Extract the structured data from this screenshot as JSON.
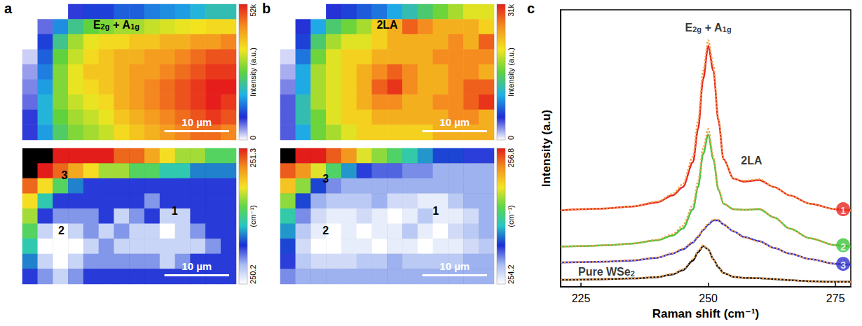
{
  "chart_data": [
    {
      "panel": "a",
      "type": "heatmap",
      "xlim": [
        0,
        33
      ],
      "ylim": [
        0,
        21
      ],
      "tick_labels": false,
      "cells": [
        [
          0,
          0,
          0,
          8000,
          10000,
          10000,
          12000,
          12000,
          14000,
          15000,
          16000,
          18000,
          20000,
          20000
        ],
        [
          0,
          6000,
          15000,
          22000,
          26000,
          28000,
          30000,
          30000,
          32000,
          33000,
          34000,
          35000,
          36000,
          36000
        ],
        [
          0,
          10000,
          22000,
          30000,
          34000,
          36000,
          36000,
          38000,
          38000,
          40000,
          40000,
          42000,
          42000,
          44000
        ],
        [
          2000,
          12000,
          26000,
          32000,
          36000,
          38000,
          40000,
          40000,
          42000,
          42000,
          44000,
          46000,
          48000,
          48000
        ],
        [
          4000,
          14000,
          28000,
          34000,
          38000,
          38000,
          40000,
          42000,
          42000,
          44000,
          46000,
          48000,
          50000,
          50000
        ],
        [
          5000,
          16000,
          28000,
          34000,
          36000,
          38000,
          40000,
          42000,
          44000,
          46000,
          48000,
          50000,
          52000,
          52000
        ],
        [
          6000,
          18000,
          28000,
          32000,
          34000,
          36000,
          40000,
          42000,
          44000,
          46000,
          48000,
          50000,
          52000,
          50000
        ],
        [
          8000,
          18000,
          26000,
          30000,
          32000,
          34000,
          38000,
          40000,
          42000,
          44000,
          46000,
          48000,
          50000,
          48000
        ],
        [
          8000,
          16000,
          24000,
          28000,
          30000,
          32000,
          36000,
          38000,
          40000,
          42000,
          44000,
          46000,
          46000,
          44000
        ]
      ],
      "colorbar": {
        "label": "Intensity (a.u.)",
        "range": [
          0,
          52000
        ],
        "ticks": [
          0,
          {
            "value": 52000,
            "label": "52k"
          }
        ],
        "colors": [
          "#ffffff",
          "#1e2bd5",
          "#1fb2e6",
          "#5fd23e",
          "#f3e61f",
          "#f5901f",
          "#e61e1b"
        ]
      },
      "scale_bar": {
        "label": "10 µm",
        "length": 10
      },
      "annotations": [
        {
          "text": "E2g + A1g",
          "x": 14.5,
          "y": 3
        }
      ]
    },
    {
      "type": "heatmap",
      "xlim": [
        0,
        33
      ],
      "ylim": [
        0,
        21
      ],
      "tick_labels": false,
      "cells": [
        [
          null,
          null,
          251.3,
          251.3,
          251.3,
          251.3,
          251.2,
          251.2,
          251.1,
          251.0,
          250.9,
          250.9,
          250.8,
          250.8
        ],
        [
          null,
          251.3,
          251.2,
          251.1,
          251.0,
          250.9,
          250.9,
          250.8,
          250.8,
          250.7,
          250.7,
          250.6,
          250.6,
          250.6
        ],
        [
          251.2,
          251.0,
          250.8,
          250.6,
          250.5,
          250.5,
          250.5,
          250.5,
          250.5,
          250.5,
          250.5,
          250.5,
          250.5,
          250.5
        ],
        [
          251.0,
          250.7,
          250.5,
          250.5,
          250.5,
          250.5,
          250.5,
          250.5,
          250.4,
          250.5,
          250.5,
          250.5,
          250.5,
          250.5
        ],
        [
          250.9,
          250.5,
          250.4,
          250.4,
          250.4,
          250.5,
          250.3,
          250.4,
          250.5,
          250.3,
          250.3,
          250.5,
          250.5,
          250.5
        ],
        [
          250.8,
          250.3,
          250.2,
          250.3,
          250.4,
          250.3,
          250.4,
          250.3,
          250.3,
          250.2,
          250.3,
          250.4,
          250.5,
          250.5
        ],
        [
          250.7,
          250.2,
          250.2,
          250.2,
          250.3,
          250.4,
          250.3,
          250.3,
          250.3,
          250.3,
          250.3,
          250.3,
          250.4,
          250.5
        ],
        [
          250.6,
          250.3,
          250.2,
          250.3,
          250.4,
          250.4,
          250.4,
          250.4,
          250.4,
          250.3,
          250.4,
          250.5,
          250.5,
          250.5
        ],
        [
          250.5,
          250.4,
          250.3,
          250.4,
          250.5,
          250.5,
          250.5,
          250.5,
          250.5,
          250.5,
          250.5,
          250.5,
          250.5,
          250.5
        ]
      ],
      "colorbar": {
        "label": "(cm⁻¹)",
        "range": [
          250.2,
          251.3
        ],
        "ticks": [
          250.2,
          251.3
        ],
        "colors": [
          "#ffffff",
          "#a9bdf2",
          "#1b2ed6",
          "#26c6c6",
          "#5ed64a",
          "#f5e424",
          "#f3921e",
          "#e31d1a"
        ]
      },
      "scale_bar": {
        "label": "10 µm",
        "length": 10
      },
      "annotations": [
        {
          "text": "3",
          "x": 6.5,
          "y": 4
        },
        {
          "text": "1",
          "x": 23.5,
          "y": 9.5
        },
        {
          "text": "2",
          "x": 6,
          "y": 12.5
        }
      ]
    },
    {
      "panel": "b",
      "type": "heatmap",
      "xlim": [
        0,
        33
      ],
      "ylim": [
        0,
        21
      ],
      "tick_labels": false,
      "cells": [
        [
          0,
          0,
          0,
          5000,
          6000,
          7000,
          8000,
          10000,
          12000,
          14000,
          16000,
          18000,
          20000,
          20000
        ],
        [
          0,
          5000,
          10000,
          14000,
          16000,
          18000,
          22000,
          24000,
          28000,
          26000,
          24000,
          24000,
          24000,
          22000
        ],
        [
          0,
          6000,
          14000,
          18000,
          20000,
          20000,
          22000,
          24000,
          24000,
          24000,
          24000,
          26000,
          24000,
          28000
        ],
        [
          1000,
          8000,
          16000,
          20000,
          22000,
          22000,
          24000,
          24000,
          24000,
          24000,
          26000,
          26000,
          26000,
          26000
        ],
        [
          2000,
          10000,
          18000,
          20000,
          22000,
          24000,
          26000,
          28000,
          26000,
          24000,
          24000,
          26000,
          26000,
          24000
        ],
        [
          3000,
          10000,
          18000,
          20000,
          22000,
          24000,
          28000,
          30000,
          26000,
          24000,
          24000,
          26000,
          28000,
          28000
        ],
        [
          4000,
          12000,
          18000,
          20000,
          22000,
          24000,
          26000,
          26000,
          24000,
          24000,
          26000,
          26000,
          28000,
          30000
        ],
        [
          4000,
          12000,
          16000,
          20000,
          22000,
          22000,
          24000,
          24000,
          24000,
          24000,
          24000,
          26000,
          26000,
          24000
        ],
        [
          4000,
          10000,
          16000,
          18000,
          20000,
          22000,
          22000,
          22000,
          22000,
          22000,
          24000,
          24000,
          24000,
          24000
        ]
      ],
      "colorbar": {
        "label": "Intensity (a.u.)",
        "range": [
          0,
          31000
        ],
        "ticks": [
          0,
          {
            "value": 31000,
            "label": "31k"
          }
        ],
        "colors": [
          "#ffffff",
          "#1e2bd5",
          "#1fb2e6",
          "#5fd23e",
          "#f3e61f",
          "#f5901f",
          "#e61e1b"
        ]
      },
      "scale_bar": {
        "label": "10 µm",
        "length": 10
      },
      "annotations": [
        {
          "text": "2LA",
          "x": 16.5,
          "y": 3
        }
      ]
    },
    {
      "type": "heatmap",
      "xlim": [
        0,
        33
      ],
      "ylim": [
        0,
        21
      ],
      "tick_labels": false,
      "cells": [
        [
          null,
          256.8,
          256.8,
          256.6,
          256.4,
          256.0,
          255.8,
          255.6,
          255.4,
          255.2,
          255.0,
          255.0,
          254.9,
          254.9
        ],
        [
          256.6,
          256.4,
          256.0,
          255.6,
          255.2,
          254.9,
          254.8,
          254.8,
          254.7,
          254.7,
          254.6,
          254.6,
          254.6,
          254.6
        ],
        [
          256.2,
          255.8,
          255.0,
          254.7,
          254.6,
          254.6,
          254.6,
          254.6,
          254.6,
          254.6,
          254.6,
          254.6,
          254.6,
          254.6
        ],
        [
          255.8,
          255.0,
          254.6,
          254.5,
          254.5,
          254.5,
          254.6,
          254.4,
          254.4,
          254.3,
          254.3,
          254.5,
          254.6,
          254.6
        ],
        [
          255.4,
          254.7,
          254.4,
          254.3,
          254.3,
          254.4,
          254.3,
          254.2,
          254.3,
          254.5,
          254.3,
          254.3,
          254.4,
          254.6
        ],
        [
          255.2,
          254.5,
          254.3,
          254.2,
          254.3,
          254.2,
          254.3,
          254.3,
          254.5,
          254.3,
          254.2,
          254.4,
          254.5,
          254.6
        ],
        [
          255.0,
          254.4,
          254.2,
          254.2,
          254.3,
          254.3,
          254.2,
          254.3,
          254.3,
          254.2,
          254.3,
          254.3,
          254.4,
          254.5
        ],
        [
          254.9,
          254.5,
          254.4,
          254.4,
          254.4,
          254.5,
          254.5,
          254.6,
          254.5,
          254.5,
          254.5,
          254.5,
          254.6,
          254.6
        ],
        [
          254.7,
          254.6,
          254.6,
          254.6,
          254.6,
          254.6,
          254.6,
          254.6,
          254.6,
          254.6,
          254.6,
          254.6,
          254.6,
          254.6
        ]
      ],
      "colorbar": {
        "label": "(cm⁻¹)",
        "range": [
          254.2,
          256.8
        ],
        "ticks": [
          254.2,
          256.8
        ],
        "colors": [
          "#ffffff",
          "#a9bdf2",
          "#1b2ed6",
          "#26c6c6",
          "#5ed64a",
          "#f5e424",
          "#f3921e",
          "#e31d1a"
        ]
      },
      "scale_bar": {
        "label": "10 µm",
        "length": 10
      },
      "annotations": [
        {
          "text": "3",
          "x": 7,
          "y": 4.5
        },
        {
          "text": "1",
          "x": 24,
          "y": 9.5
        },
        {
          "text": "2",
          "x": 7,
          "y": 12.5
        }
      ]
    },
    {
      "panel": "c",
      "type": "line",
      "xlabel": "Raman shift (cm⁻¹)",
      "ylabel": "Intensity (a.u)",
      "x": [
        221,
        225,
        230,
        235,
        240,
        243,
        245,
        247,
        248,
        249,
        250,
        251,
        252,
        253,
        255,
        257,
        260,
        263,
        266,
        270,
        275,
        278
      ],
      "xlim": [
        221,
        278
      ],
      "xticks": [
        225,
        250,
        275
      ],
      "ylim": [
        0,
        100
      ],
      "tick_labels": "x",
      "grid": false,
      "series": [
        {
          "color": "#e8251f",
          "line_style": "solid",
          "values": [
            27.5,
            28,
            28.3,
            29,
            30.5,
            33,
            36,
            45,
            57,
            75,
            87,
            78,
            60,
            46,
            39,
            38,
            38.5,
            36,
            33,
            30,
            28,
            27.5
          ]
        },
        {
          "color": "#3fc43a",
          "line_style": "solid",
          "values": [
            14.5,
            14.7,
            15,
            15.6,
            16.8,
            18.5,
            21,
            28,
            36,
            48,
            55,
            46,
            35,
            30,
            28,
            27.8,
            28,
            25,
            21,
            17.5,
            15,
            14.5
          ]
        },
        {
          "color": "#2f2fd0",
          "line_style": "solid",
          "values": [
            8.8,
            8.9,
            9.1,
            9.5,
            10.5,
            12,
            13.5,
            16,
            18,
            20.5,
            22.5,
            24,
            24,
            22.5,
            20,
            18,
            16.5,
            14,
            12,
            10,
            8.3,
            8
          ]
        },
        {
          "color": "#111111",
          "line_style": "solid",
          "values": [
            2.5,
            2.6,
            2.8,
            3,
            3.5,
            4.5,
            6,
            9.5,
            12.5,
            14.7,
            13.5,
            10,
            7,
            5,
            3.6,
            3.2,
            3.1,
            2.8,
            2.4,
            2,
            1.8,
            1.8
          ]
        },
        {
          "color": "#f0a04b",
          "line_style": "dotted",
          "values": [
            27.5,
            28,
            28.3,
            29,
            30.8,
            33.5,
            37,
            47,
            60,
            78,
            89,
            80,
            61,
            46,
            39,
            38.3,
            38.8,
            36,
            33,
            30,
            28,
            27.5
          ]
        },
        {
          "color": "#f0a04b",
          "line_style": "dotted",
          "values": [
            14.5,
            14.7,
            15,
            15.6,
            17,
            19,
            22,
            29.5,
            38,
            50,
            57,
            47,
            35.5,
            30,
            28,
            27.8,
            28.2,
            25,
            21,
            17.5,
            15,
            14.5
          ]
        },
        {
          "color": "#f0a04b",
          "line_style": "dotted",
          "values": [
            8.8,
            8.9,
            9.1,
            9.6,
            10.6,
            12.2,
            13.8,
            16.3,
            18.3,
            20.8,
            22.8,
            24.3,
            24.2,
            22.6,
            20,
            17.8,
            16.3,
            14,
            12,
            10,
            8.3,
            8
          ]
        },
        {
          "color": "#f0a04b",
          "line_style": "dotted",
          "values": [
            2.5,
            2.6,
            2.8,
            3,
            3.6,
            4.7,
            6.3,
            10,
            13,
            15,
            13.5,
            9.8,
            6.8,
            4.9,
            3.6,
            3.2,
            3.1,
            2.8,
            2.4,
            2,
            1.8,
            1.8
          ]
        }
      ],
      "annotations": [
        {
          "text": "E2g + A1g",
          "x": 250,
          "y": 94
        },
        {
          "text": "2LA",
          "x": 258.5,
          "y": 46
        },
        {
          "text": "Pure WSe2",
          "x": 230,
          "y": 5.9
        },
        {
          "text": "1",
          "x": 276.5,
          "y": 28,
          "marker": "circle",
          "color": "#e8251f"
        },
        {
          "text": "2",
          "x": 276.5,
          "y": 15,
          "marker": "circle",
          "color": "#3fc43a"
        },
        {
          "text": "3",
          "x": 276.5,
          "y": 8.3,
          "marker": "circle",
          "color": "#2f2fd0"
        }
      ]
    }
  ]
}
